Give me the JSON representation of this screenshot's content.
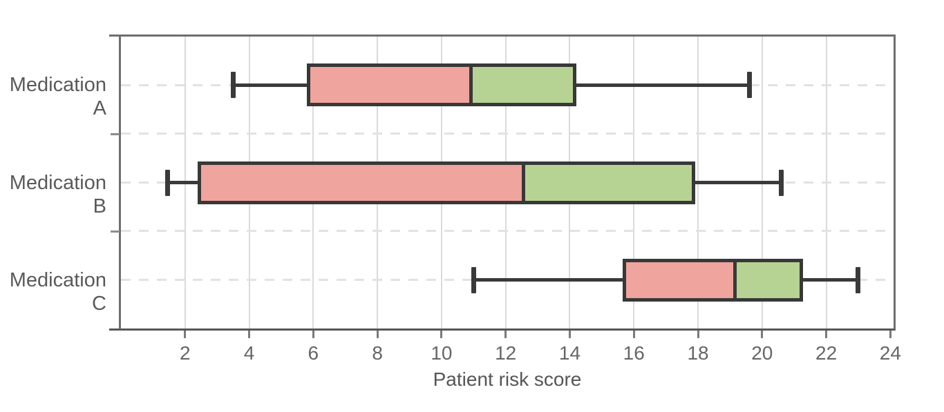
{
  "chart_data": {
    "type": "boxplot",
    "orientation": "horizontal",
    "title": "",
    "xlabel": "Patient risk score",
    "ylabel": "",
    "xlim": [
      0,
      24.1
    ],
    "x_ticks": [
      2,
      4,
      6,
      8,
      10,
      12,
      14,
      16,
      18,
      20,
      22,
      24
    ],
    "grid": {
      "vertical": "solid",
      "horizontal": "dashed",
      "legend": "none"
    },
    "categories": [
      "Medication A",
      "Medication B",
      "Medication C"
    ],
    "series": [
      {
        "label": "Medication A",
        "whisker_low": 3.5,
        "q1": 5.8,
        "median": 10.75,
        "q3": 14.0,
        "whisker_high": 19.6
      },
      {
        "label": "Medication B",
        "whisker_low": 1.45,
        "q1": 2.4,
        "median": 12.4,
        "q3": 17.7,
        "whisker_high": 20.6
      },
      {
        "label": "Medication C",
        "whisker_low": 11.0,
        "q1": 15.65,
        "median": 19.0,
        "q3": 21.05,
        "whisker_high": 23.0
      }
    ]
  },
  "colors": {
    "box_fill_below_median": "#efa49d",
    "box_fill_above_median": "#b7d393",
    "box_border": "#383838",
    "whisker": "#3a3a3a",
    "vertical_gridline": "#dadada",
    "dashed_gridline": "#e2e2e2",
    "frame": "#6e6e6e",
    "tick_mark": "#7a7a7a",
    "tick_label_text": "#666666",
    "axis_title_text": "#555555",
    "category_label_text": "#5a5a5a"
  }
}
